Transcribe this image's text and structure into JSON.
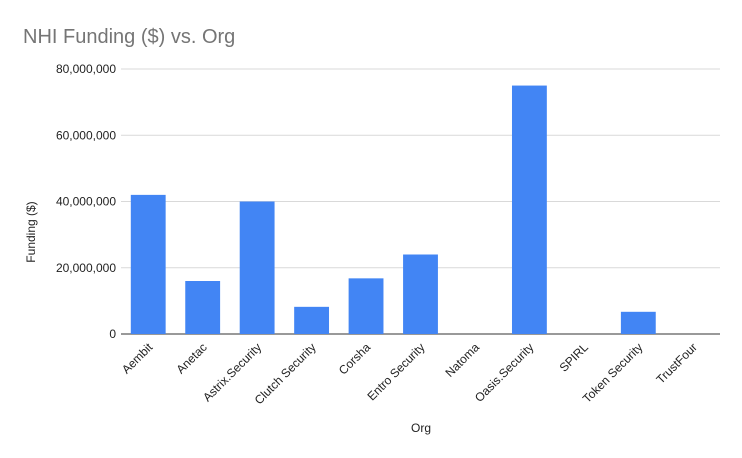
{
  "chart_data": {
    "type": "bar",
    "title": "NHI Funding ($) vs. Org",
    "xlabel": "Org",
    "ylabel": "Funding ($)",
    "categories": [
      "Aembit",
      "Anetac",
      "Astrix.Security",
      "Clutch Security",
      "Corsha",
      "Entro Security",
      "Natoma",
      "Oasis.Security",
      "SPIRL",
      "Token Security",
      "TrustFour"
    ],
    "values": [
      42000000,
      16000000,
      40000000,
      8200000,
      16800000,
      24000000,
      0,
      75000000,
      0,
      6700000,
      0
    ],
    "ylim": [
      0,
      80000000
    ],
    "yticks": [
      0,
      20000000,
      40000000,
      60000000,
      80000000
    ],
    "ytick_labels": [
      "0",
      "20,000,000",
      "40,000,000",
      "60,000,000",
      "80,000,000"
    ],
    "grid": true,
    "bar_color": "#4285f4"
  }
}
